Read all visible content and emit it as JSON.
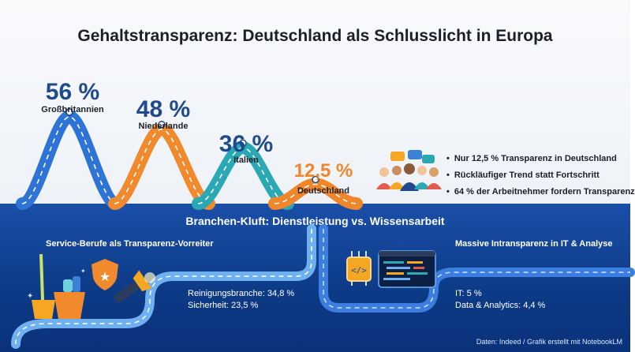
{
  "title": "Gehaltstransparenz: Deutschland als Schlusslicht in Europa",
  "chart_data": {
    "type": "area",
    "categories": [
      "Großbritannien",
      "Niederlande",
      "Italien",
      "Deutschland"
    ],
    "values": [
      56,
      48,
      36,
      12.5
    ],
    "value_labels": [
      "56 %",
      "48 %",
      "36 %",
      "12,5 %"
    ],
    "colors": [
      "#2d74d6",
      "#f08a2c",
      "#2aa8b3",
      "#f0862a"
    ]
  },
  "bullets": [
    "Nur 12,5 % Transparenz in Deutschland",
    "Rückläufiger Trend statt Fortschritt",
    "64 % der Arbeitnehmer fordern Transparenz"
  ],
  "section": {
    "title": "Branchen-Kluft: Dienstleistung vs. Wissensarbeit",
    "left": {
      "heading": "Service-Berufe als Transparenz-Vorreiter",
      "lines": [
        "Reinigungsbranche: 34,8 %",
        "Sicherheit: 23,5 %"
      ]
    },
    "right": {
      "heading": "Massive Intransparenz in IT & Analyse",
      "lines": [
        "IT: 5 %",
        "Data & Analytics: 4,4 %"
      ]
    }
  },
  "icons": [
    "people-group-icon",
    "speech-bubble-icon",
    "cleaning-bucket-icon",
    "security-badge-icon",
    "flashlight-icon",
    "chip-icon",
    "code-editor-icon"
  ],
  "source": "Daten: Indeed / Grafik erstellt mit NotebookLM"
}
